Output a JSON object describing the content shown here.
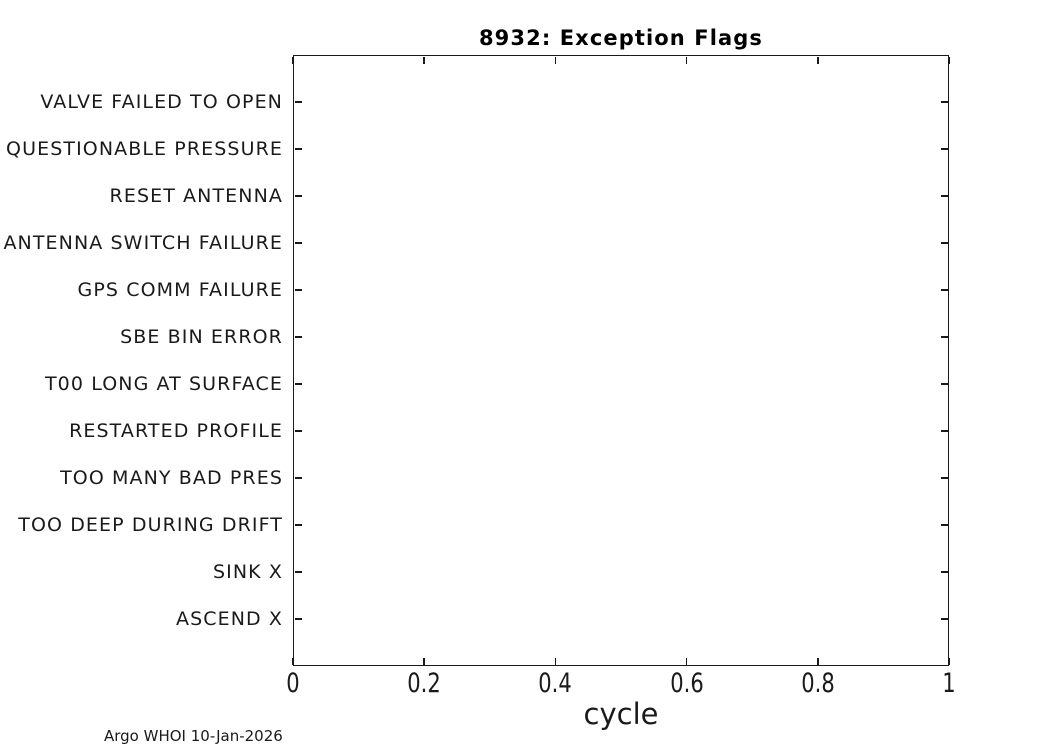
{
  "chart_data": {
    "type": "scatter",
    "title": "8932: Exception Flags",
    "xlabel": "cycle",
    "ylabel": "",
    "xlim": [
      0,
      1
    ],
    "xticks": [
      0,
      0.2,
      0.4,
      0.6,
      0.8,
      1
    ],
    "xtick_labels": [
      "0",
      "0.2",
      "0.4",
      "0.6",
      "0.8",
      "1"
    ],
    "categories": [
      "VALVE FAILED TO OPEN",
      "QUESTIONABLE PRESSURE",
      "RESET ANTENNA",
      "ANTENNA SWITCH FAILURE",
      "GPS COMM FAILURE",
      "SBE BIN ERROR",
      "T00 LONG AT SURFACE",
      "RESTARTED PROFILE",
      "TOO MANY BAD PRES",
      "TOO DEEP DURING DRIFT",
      "SINK X",
      "ASCEND X"
    ],
    "series": [],
    "grid": false,
    "box": true,
    "tick_direction": "in",
    "legend": ""
  },
  "annotations": {
    "credit": "Argo WHOI 10-Jan-2026"
  },
  "colors": {
    "axis": "#1a1a1a",
    "text": "#1a1a1a",
    "title": "#000000",
    "background": "#ffffff"
  }
}
